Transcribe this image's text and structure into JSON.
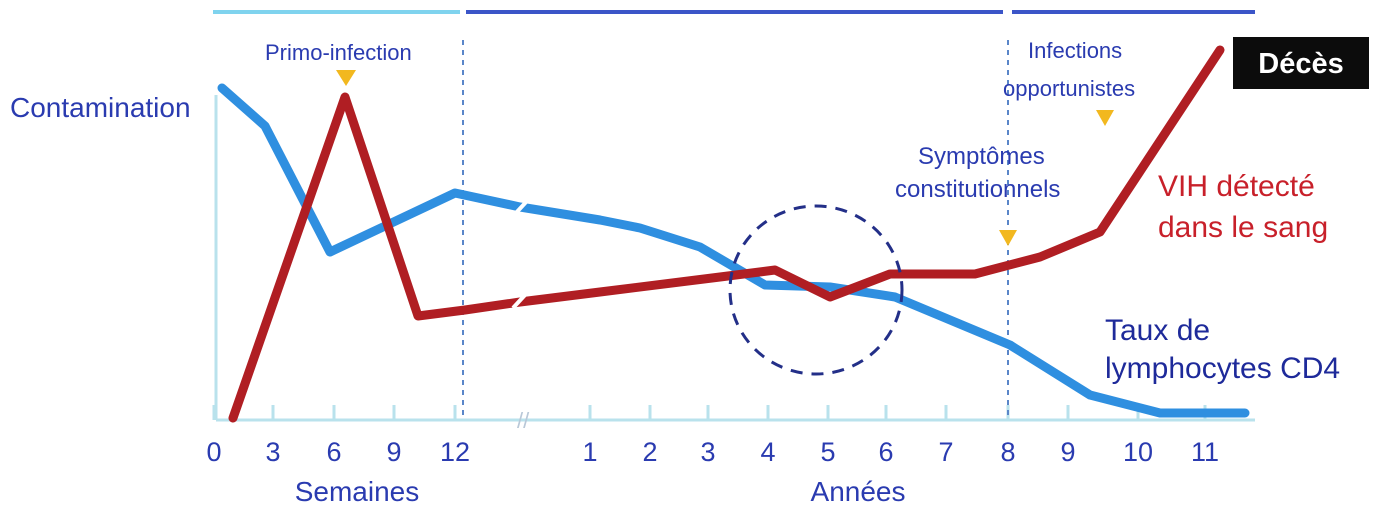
{
  "labels": {
    "primo": "Primo-infection",
    "infections_1": "Infections",
    "infections_2": "opportunistes",
    "deces": "Décès",
    "contamination": "Contamination",
    "symptomes_1": "Symptômes",
    "symptomes_2": "constitutionnels",
    "vih_1": "VIH détecté",
    "vih_2": "dans le sang",
    "taux_1": "Taux de",
    "taux_2": "lymphocytes CD4",
    "semaines": "Semaines",
    "annees": "Années"
  },
  "colors": {
    "cd4": "#2f8fe0",
    "vih": "#b01e23",
    "text_blue": "#2a3bb0",
    "text_red": "#c8202a",
    "axis": "#b9e2ec",
    "phase_dark": "#3b55c8",
    "phase_light": "#7fd3ee",
    "marker": "#f2b81f",
    "circle": "#232f88",
    "deces_bg": "#0c0c0c"
  },
  "ticks": {
    "weeks": [
      "0",
      "3",
      "6",
      "9",
      "12"
    ],
    "years": [
      "1",
      "2",
      "3",
      "4",
      "5",
      "6",
      "7",
      "8",
      "9",
      "10",
      "11"
    ]
  },
  "break_mark": "//"
}
